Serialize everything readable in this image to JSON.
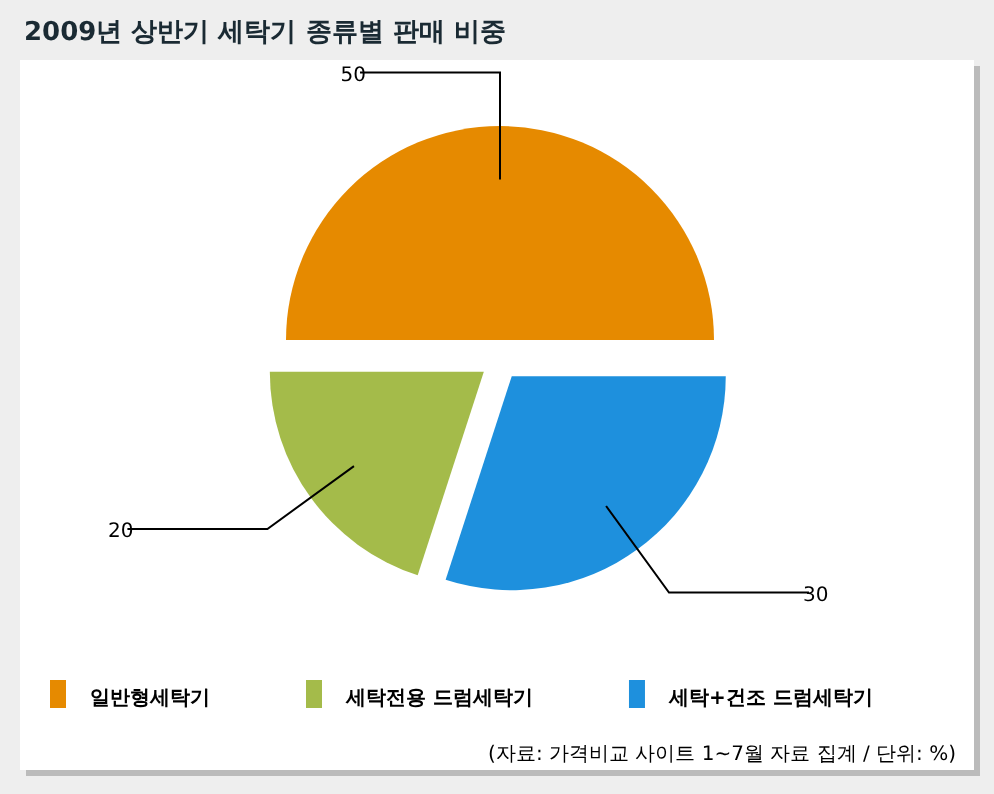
{
  "chart_data": {
    "type": "pie",
    "title": "2009년 상반기 세탁기 종류별 판매 비중",
    "categories": [
      "일반형세탁기",
      "세탁전용 드럼세탁기",
      "세탁+건조 드럼세탁기"
    ],
    "values": [
      50,
      20,
      30
    ],
    "colors": [
      "#e68a00",
      "#a4bb4a",
      "#1e90dd"
    ],
    "data_labels": true,
    "legend": "bottom",
    "annotations": [
      "(자료: 가격비교 사이트 1~7월 자료 집계 / 단위: %)"
    ]
  }
}
